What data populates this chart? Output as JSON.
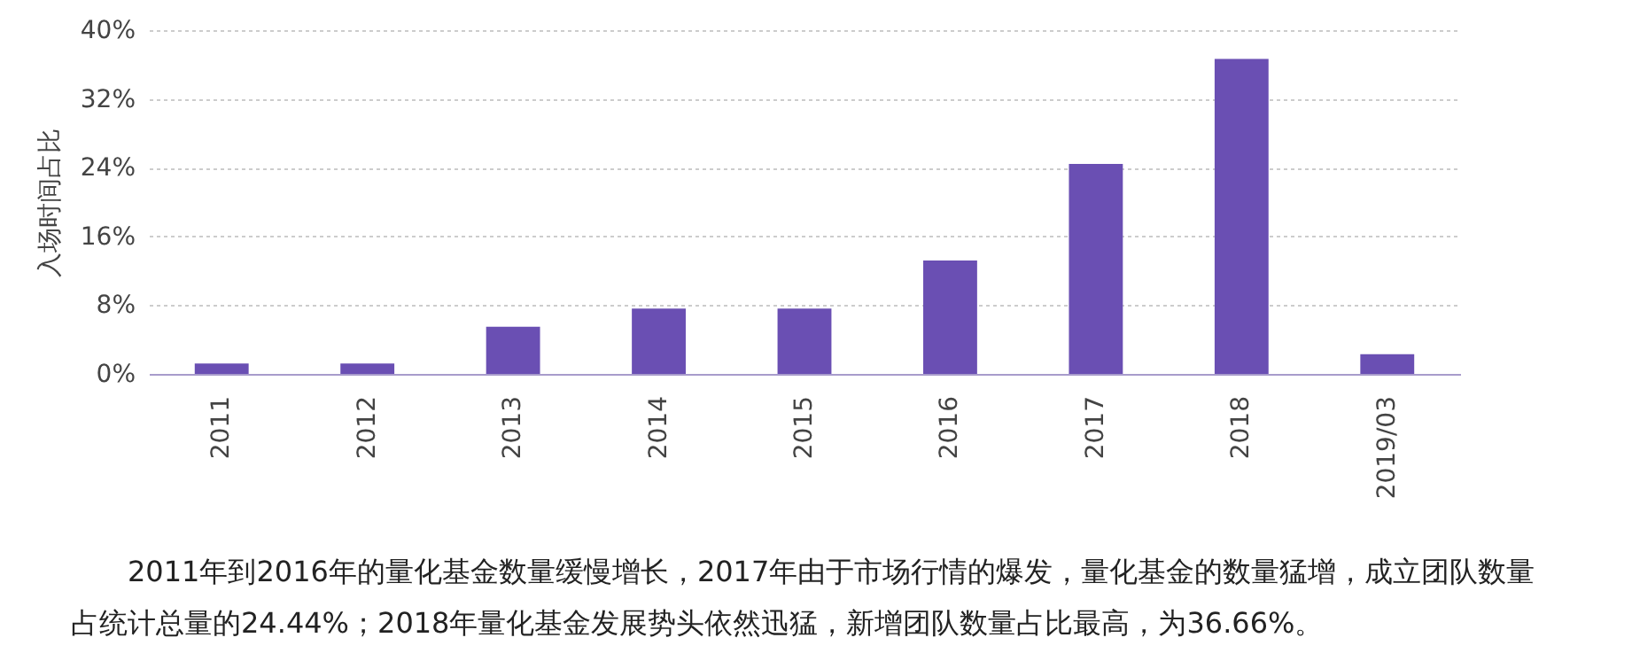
{
  "chart_data": {
    "type": "bar",
    "ylabel": "入场时间占比",
    "categories": [
      "2011",
      "2012",
      "2013",
      "2014",
      "2015",
      "2016",
      "2017",
      "2018",
      "2019/03"
    ],
    "values": [
      1.2,
      1.2,
      5.5,
      7.6,
      7.6,
      13.2,
      24.44,
      36.66,
      2.3
    ],
    "color": "#6a4fb3",
    "ylim": [
      0,
      40
    ],
    "yticks": [
      {
        "value": 0,
        "label": "0%"
      },
      {
        "value": 8,
        "label": "8%"
      },
      {
        "value": 16,
        "label": "16%"
      },
      {
        "value": 24,
        "label": "24%"
      },
      {
        "value": 32,
        "label": "32%"
      },
      {
        "value": 40,
        "label": "40%"
      }
    ],
    "grid": "y",
    "annotations": [
      "2011年到2016年的量化基金数量缓慢增长，2017年由于市场行情的爆发，量化基金的数量猛增，成立团队数量占统计总量的24.44%；2018年量化基金发展势头依然迅猛，新增团队数量占比最高，为36.66%。"
    ]
  }
}
